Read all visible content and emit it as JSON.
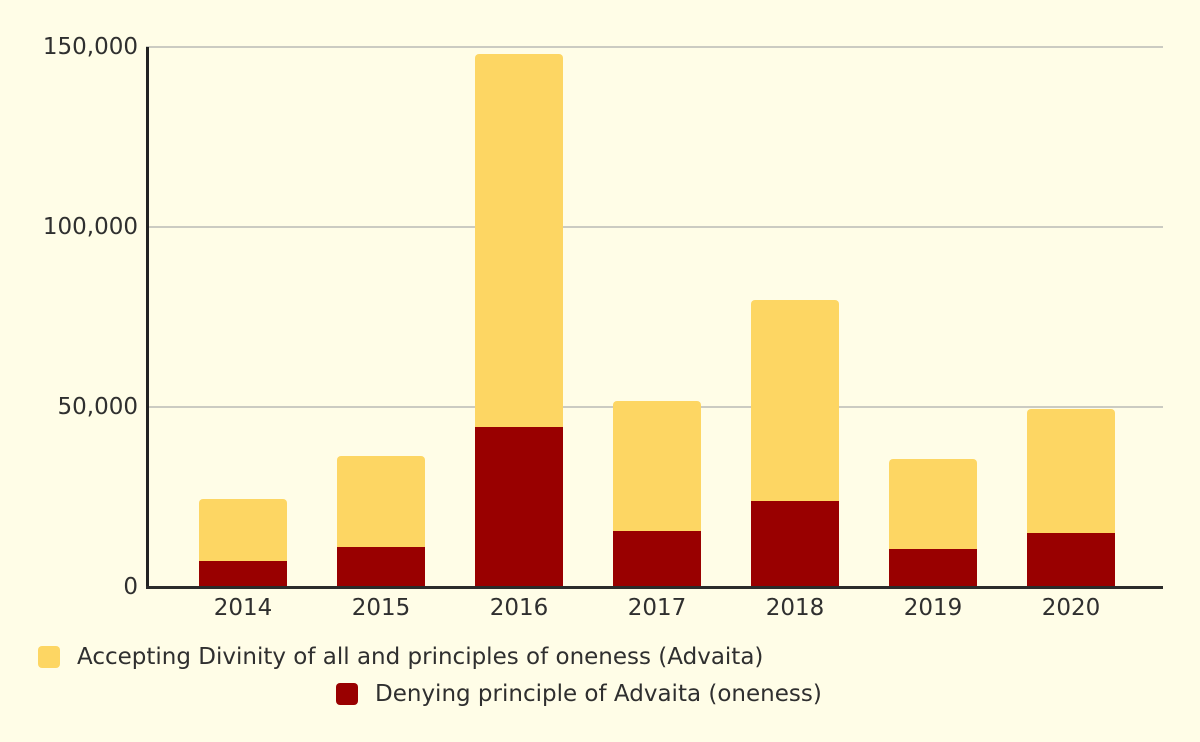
{
  "colors": {
    "background": "#FFFDE7",
    "gridline": "#CBCBC2",
    "axis_line": "#222222",
    "baseline": "#2B2B2B",
    "text": "#2F2F2F",
    "series_yellow": "#FDD663",
    "series_red": "#990000"
  },
  "chart_data": {
    "type": "bar",
    "stacked": true,
    "title": "",
    "xlabel": "",
    "ylabel": "",
    "categories": [
      "2014",
      "2015",
      "2016",
      "2017",
      "2018",
      "2019",
      "2020"
    ],
    "series": [
      {
        "id": "accepting",
        "name": "Accepting Divinity of all and principles of oneness (Advaita)",
        "color": "#FDD663",
        "stack_position": "top",
        "values": [
          17300,
          25500,
          103500,
          36000,
          55800,
          25000,
          34500
        ]
      },
      {
        "id": "denying",
        "name": "Denying principle of Advaita (oneness)",
        "color": "#990000",
        "stack_position": "bottom",
        "values": [
          7200,
          11000,
          44500,
          15600,
          24000,
          10500,
          15000
        ]
      }
    ],
    "stack_totals": [
      24500,
      36500,
      148000,
      51600,
      79800,
      35500,
      49500
    ],
    "ylim": [
      0,
      150000
    ],
    "y_ticks": [
      {
        "label": "0",
        "value": 0
      },
      {
        "label": "50,000",
        "value": 50000
      },
      {
        "label": "100,000",
        "value": 100000
      },
      {
        "label": "150,000",
        "value": 150000
      }
    ],
    "grid": true,
    "legend_position": "bottom"
  }
}
